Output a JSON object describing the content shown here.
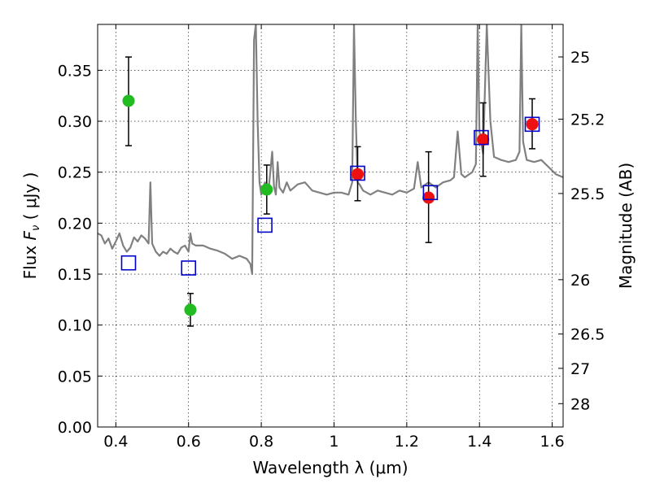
{
  "chart_data": {
    "type": "scatter",
    "xlabel": "Wavelength  λ (μm)",
    "ylabel": "Flux  F_ν  ( μJy )",
    "y2label": "Magnitude (AB)",
    "xlim": [
      0.35,
      1.63
    ],
    "ylim": [
      0.0,
      0.395
    ],
    "grid": true,
    "x_ticks": [
      0.4,
      0.6,
      0.8,
      1.0,
      1.2,
      1.4,
      1.6
    ],
    "x_tick_labels": [
      "0.4",
      "0.6",
      "0.8",
      "1",
      "1.2",
      "1.4",
      "1.6"
    ],
    "y_ticks": [
      0.0,
      0.05,
      0.1,
      0.15,
      0.2,
      0.25,
      0.3,
      0.35
    ],
    "y_tick_labels": [
      "0.00",
      "0.05",
      "0.10",
      "0.15",
      "0.20",
      "0.25",
      "0.30",
      "0.35"
    ],
    "y2_ticks": [
      {
        "mag": 25,
        "label": "25"
      },
      {
        "mag": 25.2,
        "label": "25.2"
      },
      {
        "mag": 25.5,
        "label": "25.5"
      },
      {
        "mag": 26,
        "label": "26"
      },
      {
        "mag": 26.5,
        "label": "26.5"
      },
      {
        "mag": 27,
        "label": "27"
      },
      {
        "mag": 28,
        "label": "28"
      }
    ],
    "series": [
      {
        "kind": "spectrum",
        "color": "#808080",
        "x": [
          0.35,
          0.36,
          0.37,
          0.38,
          0.39,
          0.4,
          0.41,
          0.42,
          0.43,
          0.44,
          0.45,
          0.46,
          0.47,
          0.48,
          0.49,
          0.495,
          0.5,
          0.51,
          0.52,
          0.53,
          0.54,
          0.55,
          0.56,
          0.57,
          0.58,
          0.59,
          0.6,
          0.605,
          0.61,
          0.62,
          0.64,
          0.66,
          0.68,
          0.7,
          0.72,
          0.74,
          0.76,
          0.77,
          0.775,
          0.78,
          0.785,
          0.79,
          0.795,
          0.8,
          0.805,
          0.81,
          0.82,
          0.83,
          0.835,
          0.84,
          0.845,
          0.85,
          0.86,
          0.87,
          0.88,
          0.9,
          0.92,
          0.94,
          0.96,
          0.98,
          1.0,
          1.02,
          1.04,
          1.05,
          1.055,
          1.06,
          1.065,
          1.07,
          1.08,
          1.1,
          1.12,
          1.14,
          1.16,
          1.18,
          1.2,
          1.22,
          1.23,
          1.24,
          1.26,
          1.28,
          1.3,
          1.32,
          1.33,
          1.34,
          1.35,
          1.36,
          1.38,
          1.39,
          1.395,
          1.4,
          1.41,
          1.42,
          1.43,
          1.44,
          1.46,
          1.48,
          1.5,
          1.51,
          1.515,
          1.52,
          1.53,
          1.55,
          1.57,
          1.59,
          1.61,
          1.63
        ],
        "y": [
          0.19,
          0.188,
          0.18,
          0.185,
          0.175,
          0.182,
          0.19,
          0.178,
          0.172,
          0.176,
          0.186,
          0.182,
          0.188,
          0.185,
          0.18,
          0.24,
          0.18,
          0.172,
          0.168,
          0.172,
          0.17,
          0.175,
          0.172,
          0.17,
          0.176,
          0.178,
          0.172,
          0.19,
          0.18,
          0.178,
          0.178,
          0.175,
          0.173,
          0.17,
          0.165,
          0.168,
          0.165,
          0.16,
          0.15,
          0.38,
          0.395,
          0.3,
          0.24,
          0.228,
          0.235,
          0.24,
          0.232,
          0.27,
          0.236,
          0.228,
          0.26,
          0.235,
          0.23,
          0.24,
          0.232,
          0.238,
          0.24,
          0.232,
          0.23,
          0.228,
          0.23,
          0.23,
          0.228,
          0.24,
          0.395,
          0.3,
          0.24,
          0.238,
          0.232,
          0.228,
          0.232,
          0.23,
          0.228,
          0.232,
          0.23,
          0.234,
          0.26,
          0.235,
          0.24,
          0.235,
          0.24,
          0.242,
          0.245,
          0.29,
          0.248,
          0.245,
          0.25,
          0.258,
          0.395,
          0.29,
          0.268,
          0.395,
          0.3,
          0.265,
          0.262,
          0.26,
          0.262,
          0.27,
          0.395,
          0.28,
          0.262,
          0.26,
          0.262,
          0.255,
          0.248,
          0.245
        ]
      },
      {
        "kind": "points",
        "marker": "circle",
        "color": "#22bb22",
        "x": [
          0.435,
          0.605,
          0.815
        ],
        "y": [
          0.32,
          0.115,
          0.233
        ],
        "err_low": [
          0.276,
          0.099,
          0.209
        ],
        "err_high": [
          0.363,
          0.131,
          0.257
        ]
      },
      {
        "kind": "points",
        "marker": "circle",
        "color": "#ee1111",
        "x": [
          1.065,
          1.26,
          1.41,
          1.545
        ],
        "y": [
          0.248,
          0.225,
          0.282,
          0.297
        ],
        "err_low": [
          0.222,
          0.181,
          0.246,
          0.273
        ],
        "err_high": [
          0.275,
          0.27,
          0.318,
          0.322
        ]
      },
      {
        "kind": "points",
        "marker": "open-square",
        "color": "#0000cc",
        "x": [
          0.435,
          0.6,
          0.81,
          1.065,
          1.265,
          1.405,
          1.545
        ],
        "y": [
          0.161,
          0.156,
          0.198,
          0.249,
          0.23,
          0.284,
          0.297
        ]
      }
    ]
  }
}
